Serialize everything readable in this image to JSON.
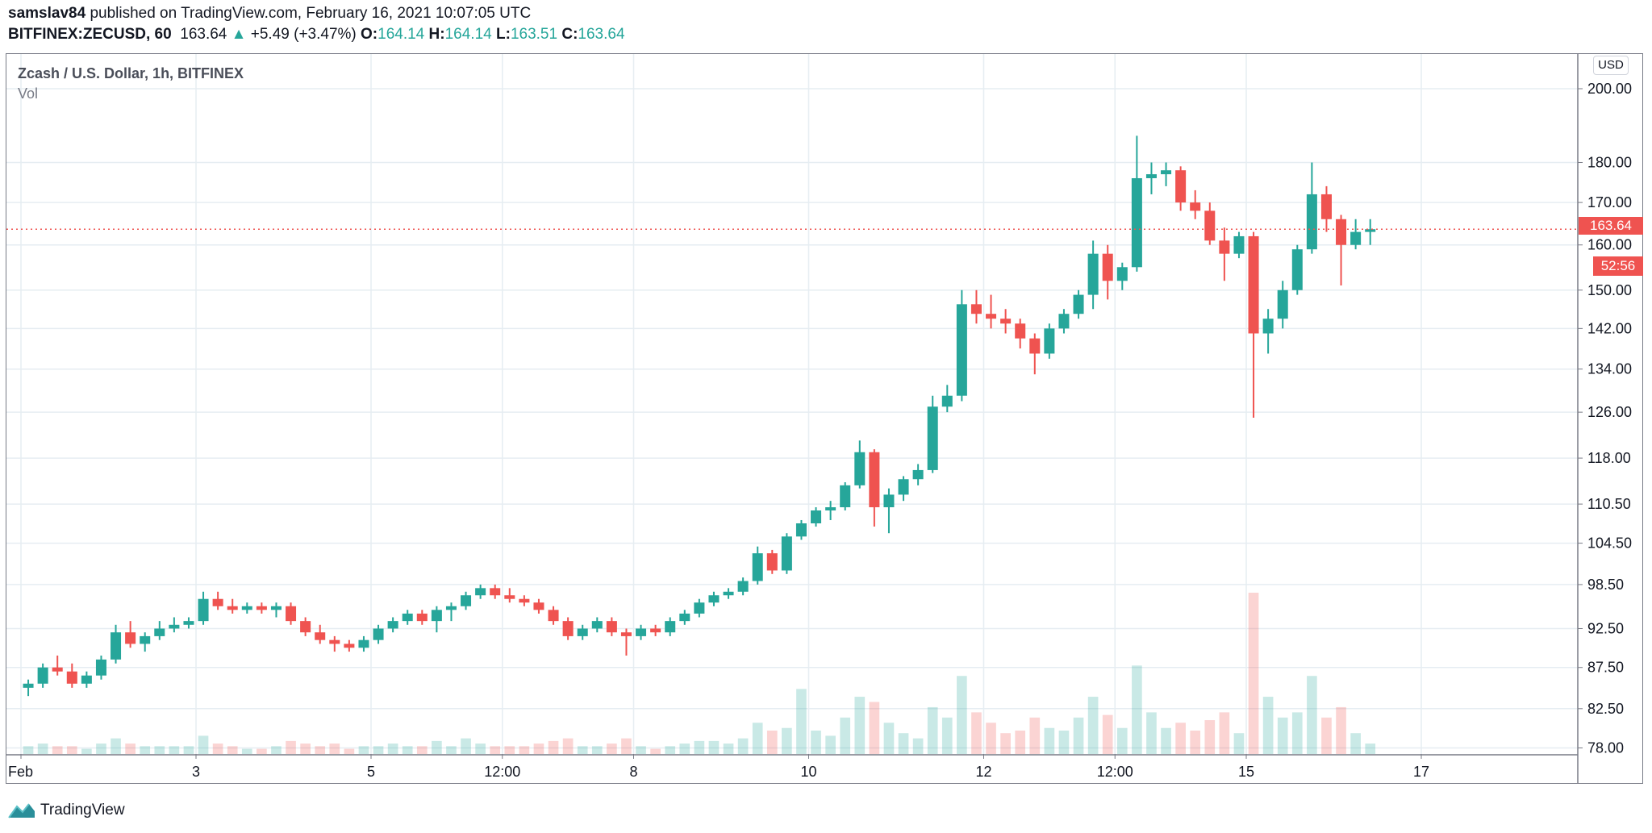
{
  "header": {
    "author": "samslav84",
    "published": "published on TradingView.com, February 16, 2021 10:07:05 UTC",
    "symbol": "BITFINEX:ZECUSD, 60",
    "last": "163.64",
    "change": "+5.49 (+3.47%)",
    "o_label": "O:",
    "o": "164.14",
    "h_label": "H:",
    "h": "164.14",
    "l_label": "L:",
    "l": "163.51",
    "c_label": "C:",
    "c": "163.64"
  },
  "chart_title": "Zcash / U.S. Dollar, 1h, BITFINEX",
  "volume_label": "Vol",
  "currency_button": "USD",
  "price_badge": "163.64",
  "countdown_badge": "52:56",
  "footer": {
    "brand": "TradingView"
  },
  "colors": {
    "up": "#26a69a",
    "down": "#ef5350",
    "grid": "#e6edf2",
    "last_price_line": "#ef5350"
  },
  "chart_data": {
    "type": "candlestick",
    "scale": "log",
    "grid": true,
    "ylim": [
      78,
      200
    ],
    "y_ticks": [
      "200.00",
      "180.00",
      "170.00",
      "160.00",
      "150.00",
      "142.00",
      "134.00",
      "126.00",
      "118.00",
      "110.50",
      "104.50",
      "98.50",
      "92.50",
      "87.50",
      "82.50",
      "78.00"
    ],
    "x_ticks": [
      {
        "label": "Feb",
        "day": 0
      },
      {
        "label": "3",
        "day": 2
      },
      {
        "label": "5",
        "day": 4
      },
      {
        "label": "12:00",
        "day": 5.5
      },
      {
        "label": "8",
        "day": 7
      },
      {
        "label": "10",
        "day": 9
      },
      {
        "label": "12",
        "day": 11
      },
      {
        "label": "12:00",
        "day": 12.5
      },
      {
        "label": "15",
        "day": 14
      },
      {
        "label": "17",
        "day": 16
      }
    ],
    "last_price": 163.64,
    "candle_hours": 4,
    "candles_ohlcv": [
      [
        85,
        86,
        84,
        85.5,
        3
      ],
      [
        85.5,
        88,
        85,
        87.5,
        4
      ],
      [
        87.5,
        89,
        86.5,
        87,
        3
      ],
      [
        87,
        88,
        85,
        85.5,
        3
      ],
      [
        85.5,
        87,
        85,
        86.5,
        2
      ],
      [
        86.5,
        89,
        86,
        88.5,
        4
      ],
      [
        88.5,
        93,
        88,
        92,
        6
      ],
      [
        92,
        93.5,
        90,
        90.5,
        4
      ],
      [
        90.5,
        92,
        89.5,
        91.5,
        3
      ],
      [
        91.5,
        93.5,
        91,
        92.5,
        3
      ],
      [
        92.5,
        94,
        92,
        93,
        3
      ],
      [
        93,
        94,
        92.5,
        93.5,
        3
      ],
      [
        93.5,
        97.5,
        93,
        96.5,
        7
      ],
      [
        96.5,
        97.5,
        95,
        95.5,
        4
      ],
      [
        95.5,
        96.5,
        94.5,
        95,
        3
      ],
      [
        95,
        96,
        94.5,
        95.5,
        2
      ],
      [
        95.5,
        96,
        94.5,
        95,
        2
      ],
      [
        95,
        96,
        94,
        95.5,
        3
      ],
      [
        95.5,
        96,
        93,
        93.5,
        5
      ],
      [
        93.5,
        94,
        91.5,
        92,
        4
      ],
      [
        92,
        93,
        90.5,
        91,
        3
      ],
      [
        91,
        91.5,
        89.5,
        90.5,
        4
      ],
      [
        90.5,
        91,
        89.5,
        90,
        2
      ],
      [
        90,
        91.5,
        89.5,
        91,
        3
      ],
      [
        91,
        93,
        90.5,
        92.5,
        3
      ],
      [
        92.5,
        94,
        92,
        93.5,
        4
      ],
      [
        93.5,
        95,
        93,
        94.5,
        3
      ],
      [
        94.5,
        95,
        93,
        93.5,
        3
      ],
      [
        93.5,
        95.5,
        92,
        95,
        5
      ],
      [
        95,
        96,
        93.5,
        95.5,
        3
      ],
      [
        95.5,
        97.5,
        95,
        97,
        6
      ],
      [
        97,
        98.5,
        96.5,
        98,
        4
      ],
      [
        98,
        98.5,
        96.5,
        97,
        3
      ],
      [
        97,
        98,
        96,
        96.5,
        3
      ],
      [
        96.5,
        97,
        95.5,
        96,
        3
      ],
      [
        96,
        96.5,
        94.5,
        95,
        4
      ],
      [
        95,
        95.5,
        93,
        93.5,
        5
      ],
      [
        93.5,
        94,
        91,
        91.5,
        6
      ],
      [
        91.5,
        93,
        91,
        92.5,
        3
      ],
      [
        92.5,
        94,
        92,
        93.5,
        3
      ],
      [
        93.5,
        94,
        91.5,
        92,
        4
      ],
      [
        92,
        92.5,
        89,
        91.5,
        6
      ],
      [
        91.5,
        93,
        91,
        92.5,
        3
      ],
      [
        92.5,
        93,
        91.5,
        92,
        2
      ],
      [
        92,
        94,
        91.5,
        93.5,
        3
      ],
      [
        93.5,
        95,
        93,
        94.5,
        4
      ],
      [
        94.5,
        96.5,
        94,
        96,
        5
      ],
      [
        96,
        97.5,
        95.5,
        97,
        5
      ],
      [
        97,
        98,
        96.5,
        97.5,
        4
      ],
      [
        97.5,
        99.5,
        97,
        99,
        6
      ],
      [
        99,
        104,
        98.5,
        103,
        12
      ],
      [
        103,
        103.5,
        100,
        100.5,
        9
      ],
      [
        100.5,
        106,
        100,
        105.5,
        10
      ],
      [
        105.5,
        108,
        105,
        107.5,
        25
      ],
      [
        107.5,
        110,
        107,
        109.5,
        9
      ],
      [
        109.5,
        111,
        108,
        110,
        7
      ],
      [
        110,
        114,
        109.5,
        113.5,
        14
      ],
      [
        113.5,
        121,
        113,
        119,
        22
      ],
      [
        119,
        119.5,
        107,
        110,
        20
      ],
      [
        110,
        113,
        106,
        112,
        12
      ],
      [
        112,
        115,
        111,
        114.5,
        8
      ],
      [
        114.5,
        117,
        113.5,
        116,
        6
      ],
      [
        116,
        129,
        115.5,
        127,
        18
      ],
      [
        127,
        131,
        126,
        129,
        14
      ],
      [
        129,
        150,
        128,
        147,
        30
      ],
      [
        147,
        150,
        143,
        145,
        16
      ],
      [
        145,
        149,
        142,
        144,
        12
      ],
      [
        144,
        146,
        141,
        143,
        8
      ],
      [
        143,
        144,
        138,
        140,
        9
      ],
      [
        140,
        141,
        133,
        137,
        14
      ],
      [
        137,
        143,
        136,
        142,
        10
      ],
      [
        142,
        146,
        141,
        145,
        9
      ],
      [
        145,
        150,
        144,
        149,
        14
      ],
      [
        149,
        161,
        146,
        158,
        22
      ],
      [
        158,
        160,
        148,
        152,
        15
      ],
      [
        152,
        156,
        150,
        155,
        10
      ],
      [
        155,
        187,
        154,
        176,
        34
      ],
      [
        176,
        180,
        172,
        177,
        16
      ],
      [
        177,
        180,
        174,
        178,
        10
      ],
      [
        178,
        179,
        168,
        170,
        12
      ],
      [
        170,
        173,
        166,
        168,
        9
      ],
      [
        168,
        170,
        160,
        161,
        13
      ],
      [
        161,
        164,
        152,
        158,
        16
      ],
      [
        158,
        163,
        157,
        162,
        8
      ],
      [
        162,
        163,
        125,
        141,
        62
      ],
      [
        141,
        146,
        137,
        144,
        22
      ],
      [
        144,
        152,
        142,
        150,
        14
      ],
      [
        150,
        160,
        149,
        159,
        16
      ],
      [
        159,
        180,
        158,
        172,
        30
      ],
      [
        172,
        174,
        163,
        166,
        14
      ],
      [
        166,
        167,
        151,
        160,
        18
      ],
      [
        160,
        166,
        159,
        163,
        8
      ],
      [
        163,
        166,
        160,
        163.64,
        4
      ]
    ]
  }
}
